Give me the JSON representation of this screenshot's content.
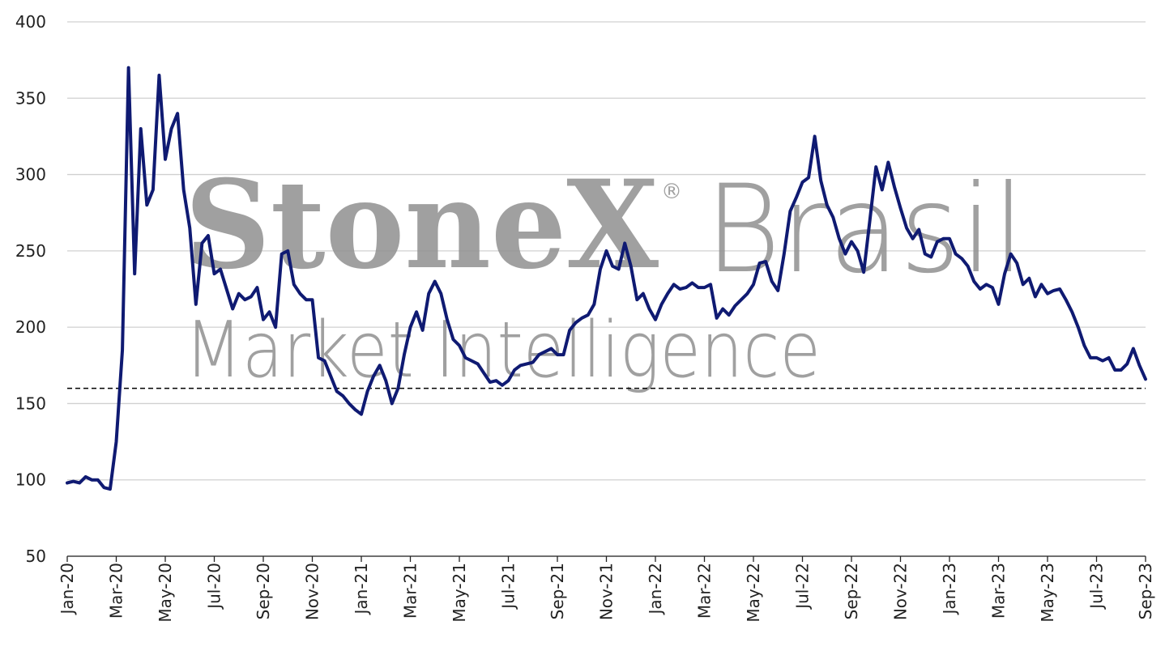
{
  "chart_data": {
    "type": "line",
    "watermark": {
      "brand": "StoneX",
      "registered": "®",
      "region": "Brasil",
      "tagline": "Market Intelligence"
    },
    "categories": [
      "Jan-20",
      null,
      null,
      null,
      null,
      null,
      null,
      null,
      "Mar-20",
      null,
      null,
      null,
      null,
      null,
      null,
      null,
      "May-20",
      null,
      null,
      null,
      null,
      null,
      null,
      null,
      "Jul-20",
      null,
      null,
      null,
      null,
      null,
      null,
      null,
      "Sep-20",
      null,
      null,
      null,
      null,
      null,
      null,
      null,
      "Nov-20",
      null,
      null,
      null,
      null,
      null,
      null,
      null,
      "Jan-21",
      null,
      null,
      null,
      null,
      null,
      null,
      null,
      "Mar-21",
      null,
      null,
      null,
      null,
      null,
      null,
      null,
      "May-21",
      null,
      null,
      null,
      null,
      null,
      null,
      null,
      "Jul-21",
      null,
      null,
      null,
      null,
      null,
      null,
      null,
      "Sep-21",
      null,
      null,
      null,
      null,
      null,
      null,
      null,
      "Nov-21",
      null,
      null,
      null,
      null,
      null,
      null,
      null,
      "Jan-22",
      null,
      null,
      null,
      null,
      null,
      null,
      null,
      "Mar-22",
      null,
      null,
      null,
      null,
      null,
      null,
      null,
      "May-22",
      null,
      null,
      null,
      null,
      null,
      null,
      null,
      "Jul-22",
      null,
      null,
      null,
      null,
      null,
      null,
      null,
      "Sep-22",
      null,
      null,
      null,
      null,
      null,
      null,
      null,
      "Nov-22",
      null,
      null,
      null,
      null,
      null,
      null,
      null,
      "Jan-23",
      null,
      null,
      null,
      null,
      null,
      null,
      null,
      "Mar-23",
      null,
      null,
      null,
      null,
      null,
      null,
      null,
      "May-23",
      null,
      null,
      null,
      null,
      null,
      null,
      null,
      "Jul-23",
      null,
      null,
      null,
      null,
      null,
      null,
      null,
      "Sep-23"
    ],
    "series": [
      {
        "color": "#0f1a72",
        "values": [
          98,
          99,
          98,
          102,
          100,
          100,
          95,
          94,
          125,
          185,
          370,
          235,
          330,
          280,
          290,
          365,
          310,
          330,
          340,
          290,
          265,
          215,
          255,
          260,
          235,
          238,
          225,
          212,
          222,
          218,
          220,
          226,
          205,
          210,
          200,
          248,
          250,
          228,
          222,
          218,
          218,
          180,
          178,
          168,
          158,
          155,
          150,
          146,
          143,
          158,
          168,
          175,
          165,
          150,
          160,
          182,
          200,
          210,
          198,
          222,
          230,
          222,
          205,
          192,
          188,
          180,
          178,
          176,
          170,
          164,
          165,
          162,
          165,
          172,
          175,
          176,
          177,
          182,
          184,
          186,
          182,
          182,
          198,
          203,
          206,
          208,
          215,
          238,
          250,
          240,
          238,
          255,
          240,
          218,
          222,
          212,
          205,
          215,
          222,
          228,
          225,
          226,
          229,
          226,
          226,
          228,
          206,
          212,
          208,
          214,
          218,
          222,
          228,
          242,
          243,
          230,
          224,
          248,
          276,
          285,
          295,
          298,
          325,
          296,
          280,
          272,
          258,
          248,
          256,
          250,
          236,
          270,
          305,
          290,
          308,
          292,
          278,
          265,
          258,
          264,
          248,
          246,
          256,
          258,
          258,
          248,
          245,
          240,
          230,
          225,
          228,
          226,
          215,
          235,
          248,
          242,
          228,
          232,
          220,
          228,
          222,
          224,
          225,
          218,
          210,
          200,
          188,
          180,
          180,
          178,
          180,
          172,
          172,
          176,
          186,
          175,
          166
        ]
      }
    ],
    "reference_line": {
      "value": 160,
      "color": "#000000",
      "style": "dashed"
    },
    "ylim": [
      50,
      400
    ],
    "yticks": [
      50,
      100,
      150,
      200,
      250,
      300,
      350,
      400
    ],
    "grid": true
  }
}
